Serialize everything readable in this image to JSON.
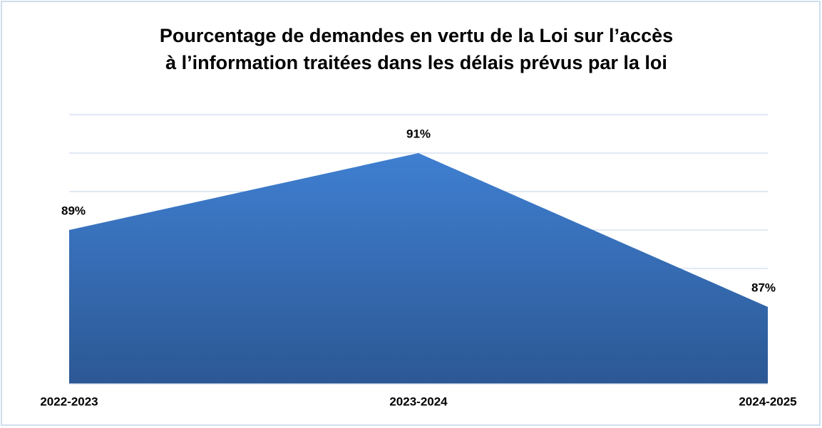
{
  "chart_data": {
    "type": "area",
    "title": [
      "Pourcentage de demandes en vertu de la Loi sur l’accès",
      "à l’information traitées dans les délais prévus par la loi"
    ],
    "categories": [
      "2022-2023",
      "2023-2024",
      "2024-2025"
    ],
    "values": [
      89,
      91,
      87
    ],
    "value_labels": [
      "89%",
      "91%",
      "87%"
    ],
    "color": "#3a73c2",
    "ylim": [
      85,
      92
    ],
    "yticks": [
      85,
      86,
      87,
      88,
      89,
      90,
      91,
      92
    ],
    "ytick_labels": false,
    "grid": true
  }
}
